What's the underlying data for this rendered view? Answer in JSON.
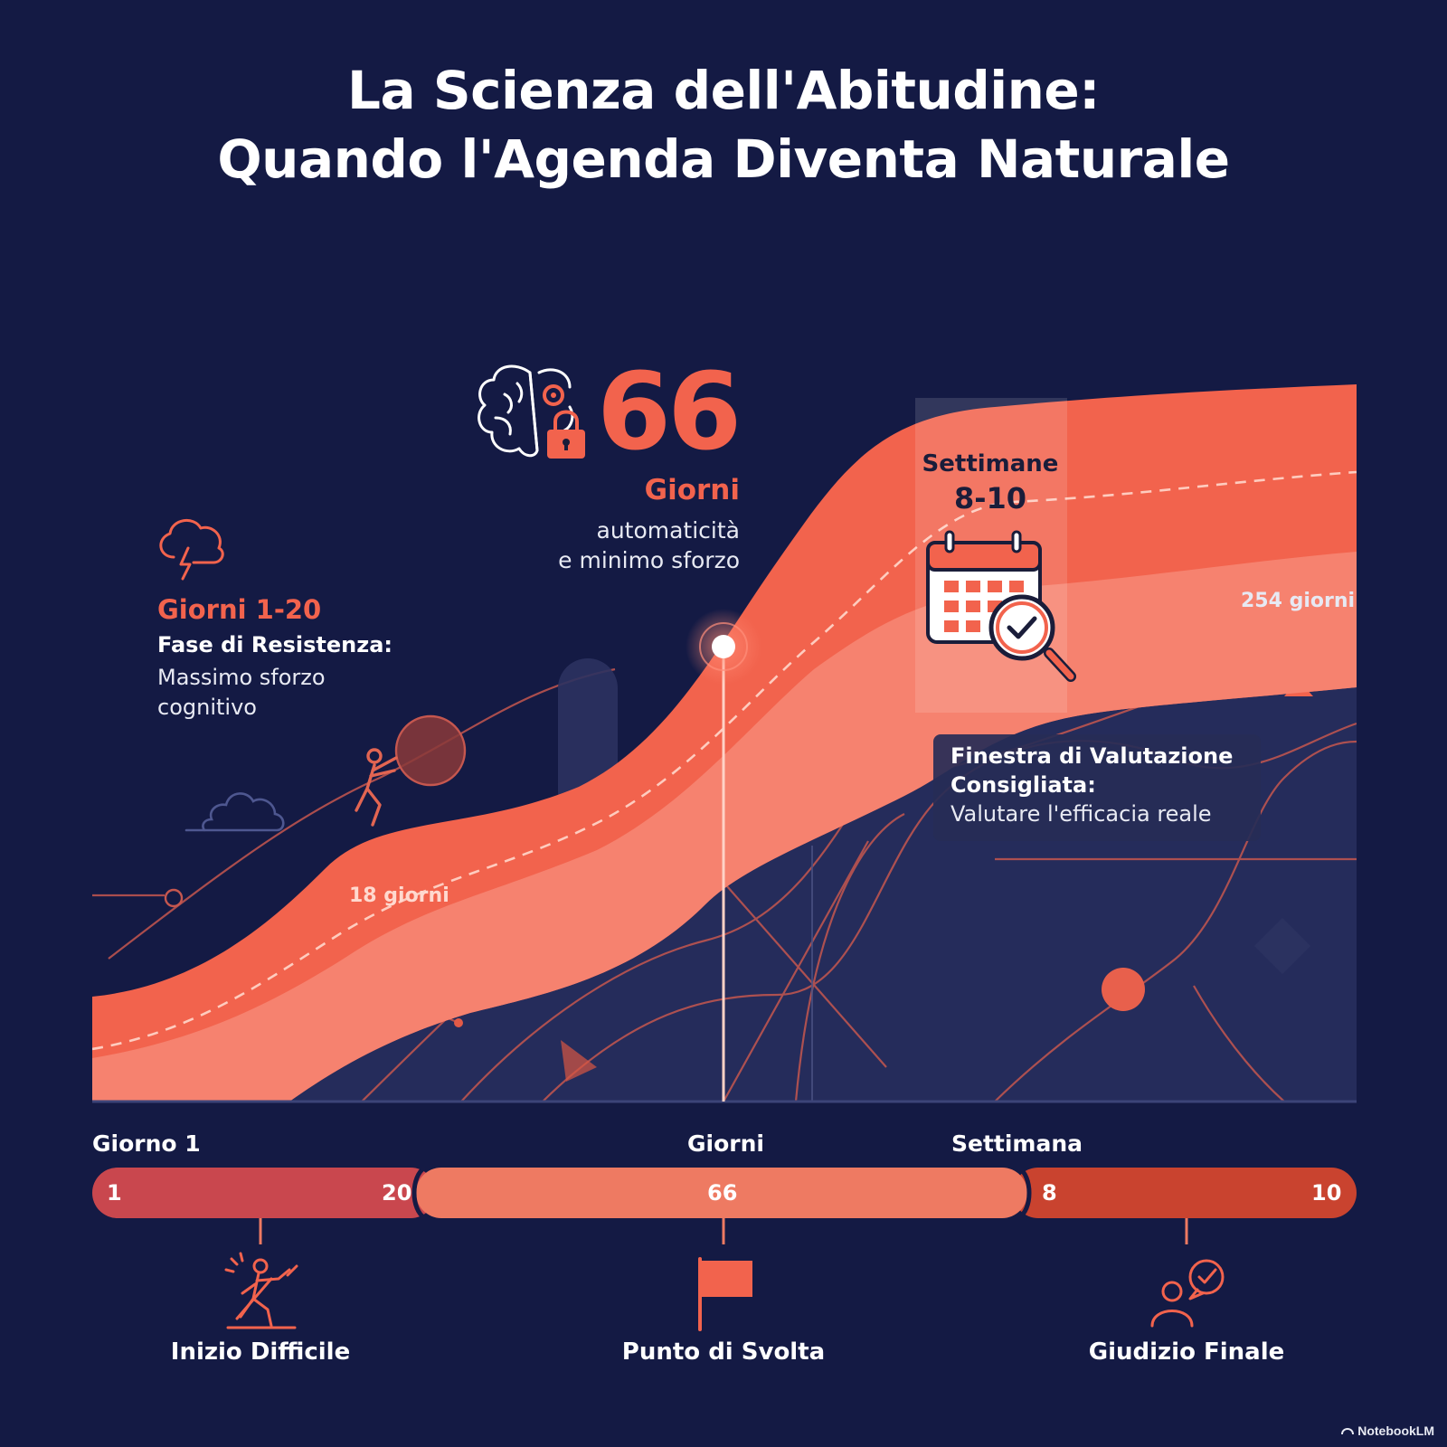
{
  "title": {
    "line1": "La Scienza dell'Abitudine:",
    "line2": "Quando l'Agenda Diventa Naturale"
  },
  "milestone_66": {
    "number": "66",
    "unit": "Giorni",
    "line1": "automaticità",
    "line2": "e minimo sforzo",
    "icon": "brain-gear-lock-icon"
  },
  "phase_resistance": {
    "range": "Giorni 1-20",
    "heading": "Fase di Resistenza:",
    "line1": "Massimo sforzo",
    "line2": "cognitivo",
    "icon": "storm-cloud-icon"
  },
  "evaluation_week": {
    "label": "Settimane",
    "range": "8-10",
    "icon": "calendar-check-icon"
  },
  "curve_labels": {
    "lower": "18 giorni",
    "upper": "254 giorni"
  },
  "evaluation_note": {
    "line1": "Finestra di Valutazione",
    "line2": "Consigliata:",
    "line3": "Valutare l'efficacia reale"
  },
  "timeline": {
    "axis_labels": [
      "Giorno 1",
      "Giorni",
      "Settimana"
    ],
    "segments": [
      {
        "start": "1",
        "end": "20",
        "color": "#c9474e"
      },
      {
        "mid": "66",
        "color": "#ee7a62"
      },
      {
        "start": "8",
        "end": "10",
        "color": "#c9432f"
      }
    ],
    "milestones": [
      {
        "label": "Inizio Difficile",
        "icon": "climbing-person-icon"
      },
      {
        "label": "Punto di Svolta",
        "icon": "flag-icon"
      },
      {
        "label": "Giudizio Finale",
        "icon": "person-check-icon"
      }
    ]
  },
  "colors": {
    "background": "#141a44",
    "accent": "#f2634d",
    "band_light": "#f47d69",
    "grey_band": "#2b3260"
  },
  "branding": "NotebookLM"
}
